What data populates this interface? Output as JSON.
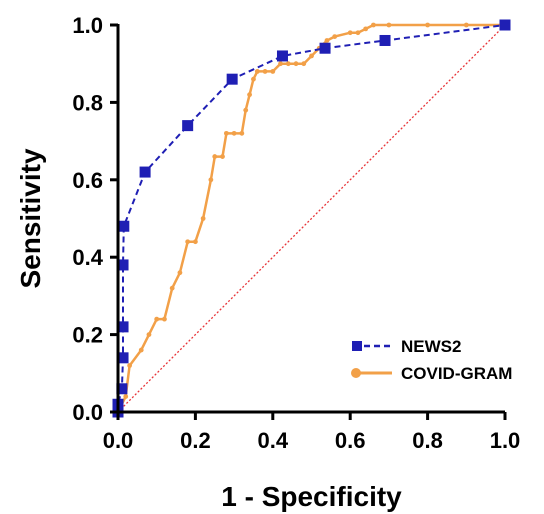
{
  "chart_data": {
    "type": "line",
    "xlabel": "1 - Specificity",
    "ylabel": "Sensitivity",
    "xlim": [
      0,
      1
    ],
    "ylim": [
      0,
      1
    ],
    "xticks": [
      "0.0",
      "0.2",
      "0.4",
      "0.6",
      "0.8",
      "1.0"
    ],
    "yticks": [
      "0.0",
      "0.2",
      "0.4",
      "0.6",
      "0.8",
      "1.0"
    ],
    "legend_position": "bottom-right",
    "reference_line": {
      "x": [
        0,
        1
      ],
      "y": [
        0,
        1
      ],
      "color": "#e8363a",
      "style": "dotted"
    },
    "series": [
      {
        "name": "NEWS2",
        "color": "#1f1fb4",
        "line_style": "dashed",
        "marker": "square",
        "x": [
          0,
          0,
          0.01,
          0.013,
          0.013,
          0.013,
          0.015,
          0.07,
          0.18,
          0.295,
          0.425,
          0.535,
          0.69,
          1.0
        ],
        "y": [
          0,
          0.02,
          0.06,
          0.14,
          0.22,
          0.38,
          0.48,
          0.62,
          0.74,
          0.86,
          0.92,
          0.94,
          0.96,
          1.0
        ]
      },
      {
        "name": "COVID-GRAM",
        "color": "#f2a048",
        "line_style": "solid",
        "marker": "circle",
        "x": [
          0,
          0.02,
          0.03,
          0.06,
          0.08,
          0.1,
          0.12,
          0.14,
          0.16,
          0.18,
          0.2,
          0.22,
          0.24,
          0.25,
          0.27,
          0.28,
          0.3,
          0.32,
          0.33,
          0.34,
          0.35,
          0.36,
          0.38,
          0.4,
          0.42,
          0.44,
          0.46,
          0.48,
          0.5,
          0.52,
          0.54,
          0.56,
          0.6,
          0.62,
          0.64,
          0.66,
          0.7,
          0.8,
          0.9,
          1.0
        ],
        "y": [
          0,
          0.04,
          0.12,
          0.16,
          0.2,
          0.24,
          0.24,
          0.32,
          0.36,
          0.44,
          0.44,
          0.5,
          0.6,
          0.66,
          0.66,
          0.72,
          0.72,
          0.72,
          0.78,
          0.82,
          0.86,
          0.88,
          0.88,
          0.88,
          0.9,
          0.9,
          0.9,
          0.9,
          0.92,
          0.94,
          0.96,
          0.97,
          0.98,
          0.98,
          0.99,
          1.0,
          1.0,
          1.0,
          1.0,
          1.0
        ]
      }
    ]
  }
}
